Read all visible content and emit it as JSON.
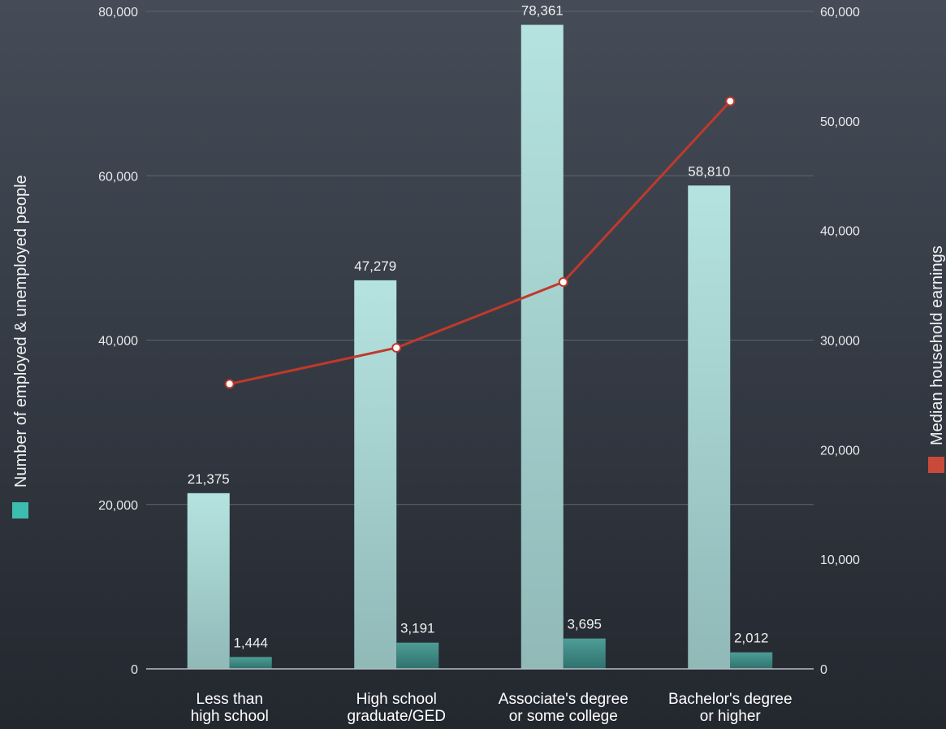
{
  "chart_data": {
    "type": "bar",
    "title": "",
    "categories": [
      [
        "Less than",
        "high school"
      ],
      [
        "High school",
        "graduate/GED"
      ],
      [
        "Associate's degree",
        "or some college"
      ],
      [
        "Bachelor's degree",
        "or higher"
      ]
    ],
    "ylabel_left": "Number of employed & unemployed people",
    "ylabel_right": "Median household earnings",
    "ylim_left": [
      0,
      80000
    ],
    "ylim_right": [
      0,
      60000
    ],
    "yticks_left": [
      "0",
      "20,000",
      "40,000",
      "60,000",
      "80,000"
    ],
    "yticks_right": [
      "0",
      "10,000",
      "20,000",
      "30,000",
      "40,000",
      "50,000",
      "60,000"
    ],
    "grid": true,
    "series": [
      {
        "type": "bar",
        "axis": "left",
        "color": "#a6d6d4",
        "values": [
          21375,
          47279,
          78361,
          58810
        ],
        "labels": [
          "21,375",
          "47,279",
          "78,361",
          "58,810"
        ]
      },
      {
        "type": "bar",
        "axis": "left",
        "color": "#3f8e88",
        "values": [
          1444,
          3191,
          3695,
          2012
        ],
        "labels": [
          "1,444",
          "3,191",
          "3,695",
          "2,012"
        ]
      },
      {
        "type": "line",
        "axis": "right",
        "color": "#c0392b",
        "values": [
          26000,
          29300,
          35300,
          51800
        ]
      }
    ],
    "legend_colors": {
      "left": "#3dbdb0",
      "right": "#c94a3a"
    }
  }
}
